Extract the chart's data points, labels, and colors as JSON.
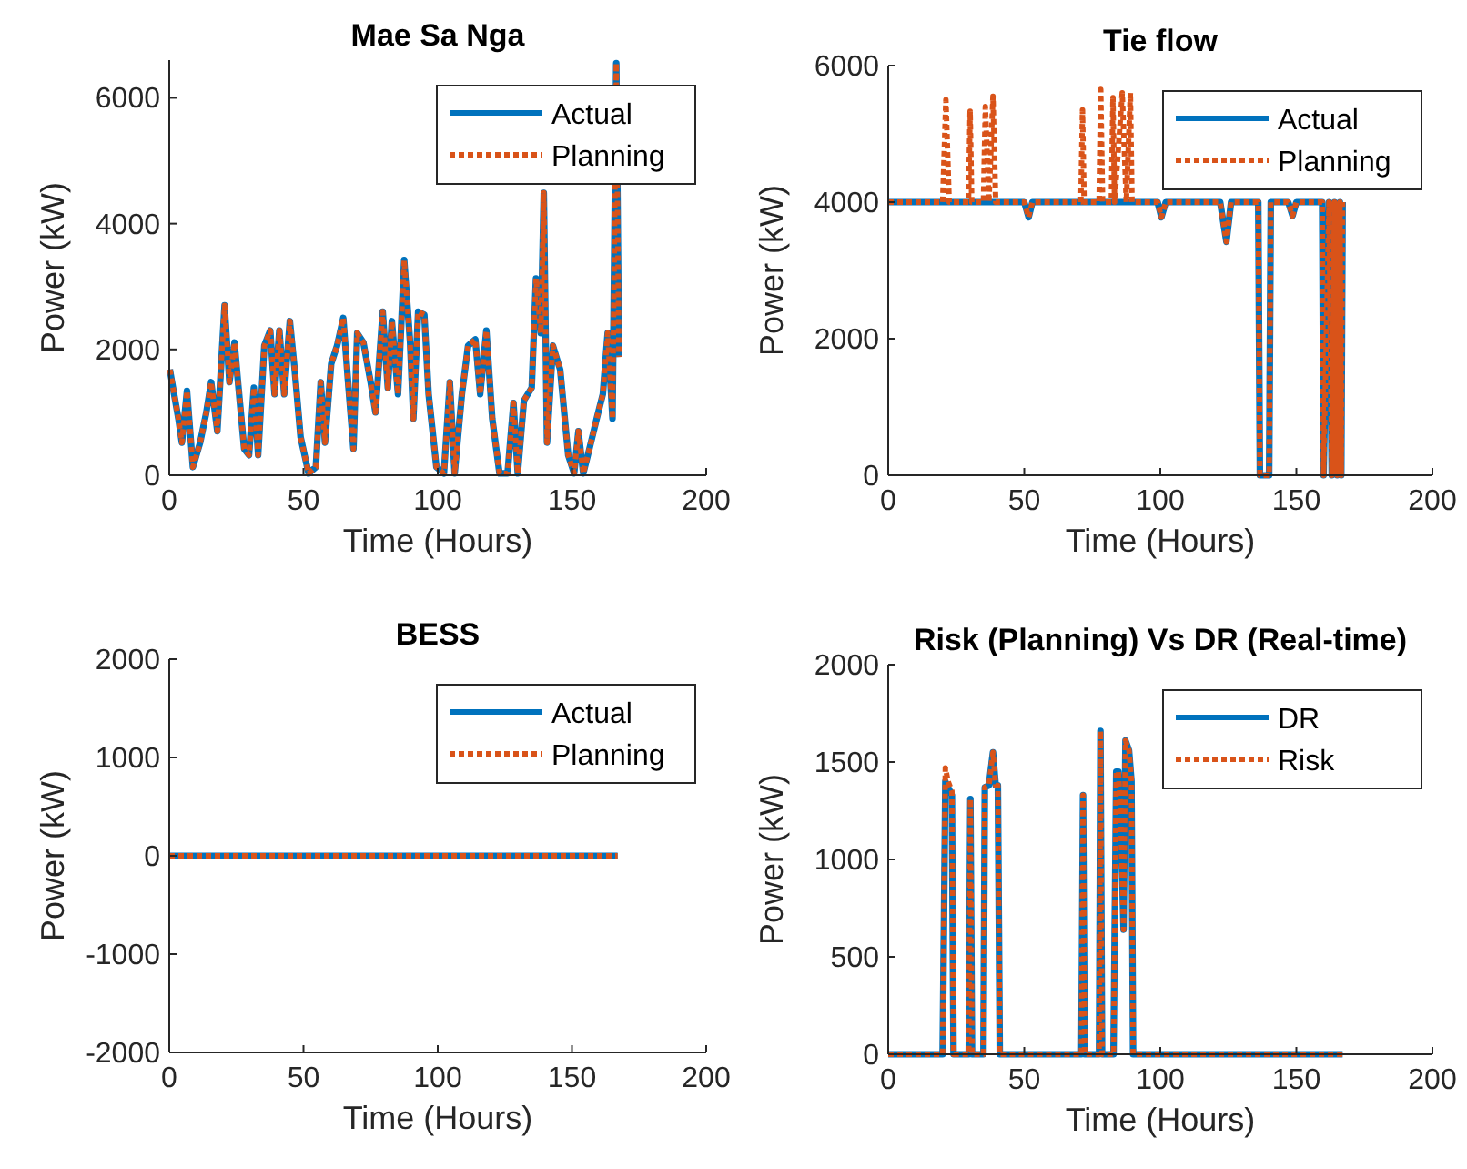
{
  "chart_data": [
    {
      "type": "line",
      "title": "Mae Sa Nga",
      "xlabel": "Time (Hours)",
      "ylabel": "Power (kW)",
      "xlim": [
        0,
        200
      ],
      "xticks": [
        0,
        50,
        100,
        150,
        200
      ],
      "ylim": [
        0,
        6600
      ],
      "yticks": [
        0,
        2000,
        4000,
        6000
      ],
      "legend": "top right",
      "series": [
        {
          "name": "Actual",
          "color": "#0072bd",
          "line_style": "solid",
          "x": [
            0.2,
            3.4,
            4.7,
            6.6,
            8.8,
            11.5,
            13.8,
            15.6,
            17.9,
            20.6,
            22.4,
            24.3,
            25.6,
            27.9,
            29.7,
            31.5,
            33.1,
            35.4,
            37.6,
            39.2,
            41,
            42.8,
            44.9,
            46.7,
            48.9,
            51.9,
            54.6,
            56.4,
            58,
            60.3,
            62.5,
            64.8,
            66.6,
            68.6,
            70,
            72.3,
            75,
            76.8,
            79.5,
            81.4,
            82.9,
            85.2,
            87.5,
            89.7,
            90.9,
            92.7,
            95,
            96.6,
            99.5,
            102.3,
            104.5,
            106.3,
            109,
            111.3,
            114,
            115.8,
            118.1,
            120.3,
            123,
            126,
            128.2,
            129.8,
            132.1,
            135,
            136.6,
            138.4,
            139.5,
            140.7,
            142.9,
            145.6,
            148.6,
            150.8,
            152.4,
            154.2,
            156.5,
            159.2,
            161.5,
            163.3,
            165.1,
            166.5,
            167.5
          ],
          "values": [
            1680,
            900,
            520,
            1340,
            130,
            520,
            1000,
            1480,
            700,
            2700,
            1480,
            2110,
            1480,
            420,
            320,
            1390,
            320,
            2060,
            2300,
            1290,
            2300,
            1290,
            2450,
            1680,
            610,
            30,
            130,
            1480,
            520,
            1770,
            2060,
            2500,
            1480,
            420,
            2260,
            2110,
            1480,
            1000,
            2600,
            1390,
            2450,
            1290,
            3420,
            2110,
            900,
            2600,
            2550,
            1290,
            130,
            30,
            1480,
            30,
            1290,
            2060,
            2160,
            1290,
            2300,
            900,
            30,
            30,
            1150,
            30,
            1190,
            1390,
            3130,
            2260,
            4490,
            520,
            2060,
            1680,
            320,
            30,
            700,
            30,
            420,
            900,
            1290,
            2260,
            900,
            6550,
            1880
          ]
        },
        {
          "name": "Planning",
          "color": "#d95319",
          "line_style": "dotted",
          "x": [
            0.2,
            3.4,
            4.7,
            6.6,
            8.8,
            11.5,
            13.8,
            15.6,
            17.9,
            20.6,
            22.4,
            24.3,
            25.6,
            27.9,
            29.7,
            31.5,
            33.1,
            35.4,
            37.6,
            39.2,
            41,
            42.8,
            44.9,
            46.7,
            48.9,
            51.9,
            54.6,
            56.4,
            58,
            60.3,
            62.5,
            64.8,
            66.6,
            68.6,
            70,
            72.3,
            75,
            76.8,
            79.5,
            81.4,
            82.9,
            85.2,
            87.5,
            89.7,
            90.9,
            92.7,
            95,
            96.6,
            99.5,
            102.3,
            104.5,
            106.3,
            109,
            111.3,
            114,
            115.8,
            118.1,
            120.3,
            123,
            126,
            128.2,
            129.8,
            132.1,
            135,
            136.6,
            138.4,
            139.5,
            140.7,
            142.9,
            145.6,
            148.6,
            150.8,
            152.4,
            154.2,
            156.5,
            159.2,
            161.5,
            163.3,
            165.1,
            166.5,
            167.5
          ],
          "values": [
            1680,
            900,
            520,
            1340,
            130,
            520,
            1000,
            1480,
            700,
            2700,
            1480,
            2110,
            1480,
            420,
            320,
            1390,
            320,
            2060,
            2300,
            1290,
            2300,
            1290,
            2450,
            1680,
            610,
            30,
            130,
            1480,
            520,
            1770,
            2060,
            2500,
            1480,
            420,
            2260,
            2110,
            1480,
            1000,
            2600,
            1390,
            2450,
            1290,
            3420,
            2110,
            900,
            2600,
            2550,
            1290,
            130,
            30,
            1480,
            30,
            1290,
            2060,
            2160,
            1290,
            2300,
            900,
            30,
            30,
            1150,
            30,
            1190,
            1390,
            3130,
            2260,
            4490,
            520,
            2060,
            1680,
            320,
            30,
            700,
            30,
            420,
            900,
            1290,
            2260,
            900,
            6550,
            1880
          ]
        }
      ]
    },
    {
      "type": "line",
      "title": "Tie flow",
      "xlabel": "Time (Hours)",
      "ylabel": "Power (kW)",
      "xlim": [
        0,
        200
      ],
      "xticks": [
        0,
        50,
        100,
        150,
        200
      ],
      "ylim": [
        0,
        6000
      ],
      "yticks": [
        0,
        2000,
        4000,
        6000
      ],
      "legend": "top right",
      "series": [
        {
          "name": "Actual",
          "color": "#0072bd",
          "line_style": "solid",
          "x": [
            0,
            50,
            51.6,
            53,
            99,
            100.4,
            102,
            122,
            124.3,
            126,
            136,
            136.6,
            140,
            140.6,
            147,
            148.6,
            150,
            159.5,
            160,
            162,
            163,
            164,
            165,
            166,
            166.5,
            167
          ],
          "values": [
            4000,
            4000,
            3780,
            4000,
            4000,
            3780,
            4000,
            4000,
            3420,
            4000,
            4000,
            0,
            0,
            4000,
            4000,
            3800,
            4000,
            4000,
            0,
            4000,
            0,
            4000,
            0,
            4000,
            0,
            4000
          ]
        },
        {
          "name": "Planning",
          "color": "#d95319",
          "line_style": "dotted",
          "x": [
            0,
            20,
            21.2,
            22.4,
            29.5,
            30.1,
            30.7,
            35,
            35.7,
            37,
            38.5,
            39.5,
            40.2,
            50,
            51.6,
            53,
            70.8,
            71.4,
            72,
            77.5,
            78.1,
            78.8,
            82,
            82.6,
            83.2,
            86,
            87.5,
            89,
            89.6,
            99,
            100.4,
            102,
            122,
            124.3,
            126,
            136,
            136.6,
            140,
            140.6,
            147,
            148.6,
            150,
            159.5,
            160,
            162,
            163,
            164,
            165,
            166,
            166.5,
            167
          ],
          "values": [
            4000,
            4000,
            5500,
            4000,
            4000,
            5330,
            4000,
            4000,
            5400,
            4000,
            5550,
            4000,
            4000,
            4000,
            3780,
            4000,
            4000,
            5350,
            4000,
            4000,
            5650,
            4000,
            4000,
            5530,
            4000,
            5600,
            4000,
            5600,
            4000,
            4000,
            3780,
            4000,
            4000,
            3420,
            4000,
            4000,
            0,
            0,
            4000,
            4000,
            3800,
            4000,
            4000,
            0,
            4000,
            0,
            4000,
            0,
            4000,
            0,
            4000
          ]
        }
      ]
    },
    {
      "type": "line",
      "title": "BESS",
      "xlabel": "Time (Hours)",
      "ylabel": "Power (kW)",
      "xlim": [
        0,
        200
      ],
      "xticks": [
        0,
        50,
        100,
        150,
        200
      ],
      "ylim": [
        -2000,
        2000
      ],
      "yticks": [
        -2000,
        -1000,
        0,
        1000,
        2000
      ],
      "legend": "top right",
      "series": [
        {
          "name": "Actual",
          "color": "#0072bd",
          "line_style": "solid",
          "x": [
            0,
            167
          ],
          "values": [
            0,
            0
          ]
        },
        {
          "name": "Planning",
          "color": "#d95319",
          "line_style": "dotted",
          "x": [
            0,
            167
          ],
          "values": [
            0,
            0
          ]
        }
      ]
    },
    {
      "type": "line",
      "title": "Risk (Planning) Vs DR (Real-time)",
      "xlabel": "Time (Hours)",
      "ylabel": "Power (kW)",
      "xlim": [
        0,
        200
      ],
      "xticks": [
        0,
        50,
        100,
        150,
        200
      ],
      "ylim": [
        0,
        2000
      ],
      "yticks": [
        0,
        500,
        1000,
        1500,
        2000
      ],
      "legend": "top right",
      "series": [
        {
          "name": "DR",
          "color": "#0072bd",
          "line_style": "solid",
          "x": [
            0,
            20,
            21,
            22,
            23.4,
            24,
            29.6,
            30.2,
            30.8,
            35,
            35.5,
            37,
            38.5,
            39.5,
            40.3,
            41,
            71,
            71.6,
            72.2,
            77.5,
            78,
            78.6,
            82.8,
            83.8,
            84.6,
            85.4,
            86.5,
            87.2,
            88.5,
            89.4,
            90,
            167
          ],
          "values": [
            0,
            0,
            1400,
            1370,
            1330,
            0,
            0,
            1310,
            0,
            0,
            1370,
            1380,
            1550,
            1380,
            1380,
            0,
            0,
            1330,
            0,
            0,
            1660,
            0,
            0,
            1450,
            1450,
            1250,
            640,
            1610,
            1560,
            1400,
            0,
            0
          ]
        },
        {
          "name": "Risk",
          "color": "#d95319",
          "line_style": "dotted",
          "x": [
            0,
            20,
            21,
            22,
            23.4,
            24,
            29.6,
            30.2,
            30.8,
            35,
            35.5,
            37,
            38.5,
            39.5,
            40.3,
            41,
            71,
            71.6,
            72.2,
            77.5,
            78,
            78.6,
            82.8,
            83.8,
            84.6,
            85.4,
            86.5,
            87.2,
            88.5,
            89.4,
            90,
            167
          ],
          "values": [
            0,
            0,
            1470,
            1400,
            1350,
            0,
            0,
            1310,
            0,
            0,
            1370,
            1380,
            1550,
            1380,
            1380,
            0,
            0,
            1330,
            0,
            0,
            1660,
            0,
            0,
            1450,
            1450,
            1250,
            640,
            1610,
            1560,
            1400,
            0,
            0
          ]
        }
      ]
    }
  ]
}
